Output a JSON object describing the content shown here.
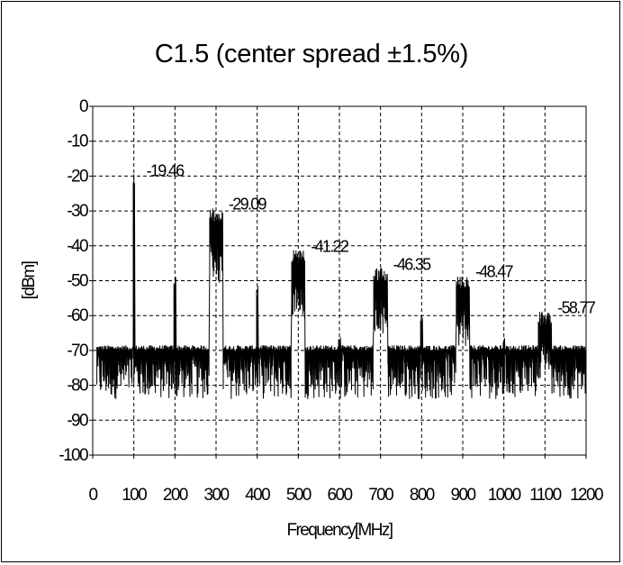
{
  "chart_data": {
    "type": "line",
    "title": "C1.5 (center spread ±1.5%)",
    "xlabel": "Frequency[MHz]",
    "ylabel": "[dBm]",
    "xlim": [
      0,
      1200
    ],
    "ylim": [
      -100,
      0
    ],
    "x_ticks": [
      "0",
      "100",
      "200",
      "300",
      "400",
      "500",
      "600",
      "700",
      "800",
      "900",
      "1000",
      "1100",
      "1200"
    ],
    "y_ticks": [
      "0",
      "-10",
      "-20",
      "-30",
      "-40",
      "-50",
      "-60",
      "-70",
      "-80",
      "-90",
      "-100"
    ],
    "grid": "dashed",
    "noise_floor": [
      -84,
      -70
    ],
    "peaks": [
      {
        "x": 100,
        "y": -19.46,
        "label": "-19.46"
      },
      {
        "x": 200,
        "y": -48,
        "label": ""
      },
      {
        "x": 300,
        "y": -29.09,
        "label": "-29.09"
      },
      {
        "x": 400,
        "y": -51,
        "label": ""
      },
      {
        "x": 500,
        "y": -41.22,
        "label": "-41.22"
      },
      {
        "x": 600,
        "y": -66,
        "label": ""
      },
      {
        "x": 700,
        "y": -46.35,
        "label": "-46.35"
      },
      {
        "x": 800,
        "y": -59,
        "label": ""
      },
      {
        "x": 900,
        "y": -48.47,
        "label": "-48.47"
      },
      {
        "x": 1000,
        "y": -66,
        "label": ""
      },
      {
        "x": 1100,
        "y": -58.77,
        "label": "-58.77"
      }
    ]
  }
}
